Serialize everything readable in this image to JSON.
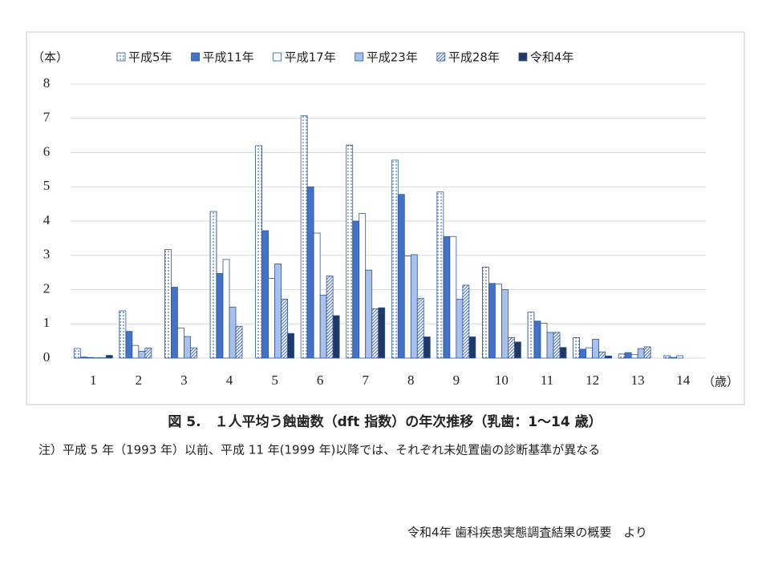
{
  "chart_data": {
    "type": "bar",
    "y_unit": "（本）",
    "x_unit": "（歳）",
    "caption": "図 5.　１人平均う蝕歯数（dft 指数）の年次推移（乳歯：1〜14 歳）",
    "note": "注）平成 5 年（1993 年）以前、平成 11 年(1999 年)以降では、それぞれ未処置歯の診断基準が異なる",
    "source": "令和4年 歯科疾患実態調査結果の概要　より",
    "categories": [
      "1",
      "2",
      "3",
      "4",
      "5",
      "6",
      "7",
      "8",
      "9",
      "10",
      "11",
      "12",
      "13",
      "14"
    ],
    "series": [
      {
        "name": "平成5年",
        "color": "#4472c4",
        "pattern": "dots",
        "values": [
          0.28,
          1.38,
          3.17,
          4.28,
          6.2,
          7.08,
          6.22,
          5.78,
          4.85,
          2.66,
          1.34,
          0.6,
          0.12,
          0.07
        ]
      },
      {
        "name": "平成11年",
        "color": "#4472c4",
        "values": [
          0.03,
          0.78,
          2.07,
          2.47,
          3.72,
          5.0,
          4.0,
          4.78,
          3.55,
          2.18,
          1.08,
          0.26,
          0.16,
          0.02
        ]
      },
      {
        "name": "平成17年",
        "color": "#ffffff",
        "values": [
          0.02,
          0.37,
          0.88,
          2.88,
          2.33,
          3.65,
          4.22,
          2.98,
          3.55,
          2.16,
          1.02,
          0.3,
          0.1,
          0.07
        ]
      },
      {
        "name": "平成23年",
        "color": "#a9c0e8",
        "values": [
          0.01,
          0.2,
          0.63,
          1.49,
          2.75,
          1.84,
          2.57,
          3.02,
          1.72,
          2.0,
          0.75,
          0.55,
          0.28,
          0
        ]
      },
      {
        "name": "平成28年",
        "color": "#4472c4",
        "pattern": "hatch",
        "values": [
          0.01,
          0.29,
          0.3,
          0.93,
          1.72,
          2.4,
          1.44,
          1.74,
          2.13,
          0.6,
          0.75,
          0.18,
          0.33,
          0
        ]
      },
      {
        "name": "令和4年",
        "color": "#1f3864",
        "values": [
          0.08,
          0,
          0,
          0,
          0.72,
          1.24,
          1.47,
          0.62,
          0.62,
          0.47,
          0.31,
          0.06,
          0,
          0
        ]
      }
    ],
    "ylim": [
      0,
      8
    ],
    "yticks": [
      0,
      1,
      2,
      3,
      4,
      5,
      6,
      7,
      8
    ],
    "grid": true
  }
}
